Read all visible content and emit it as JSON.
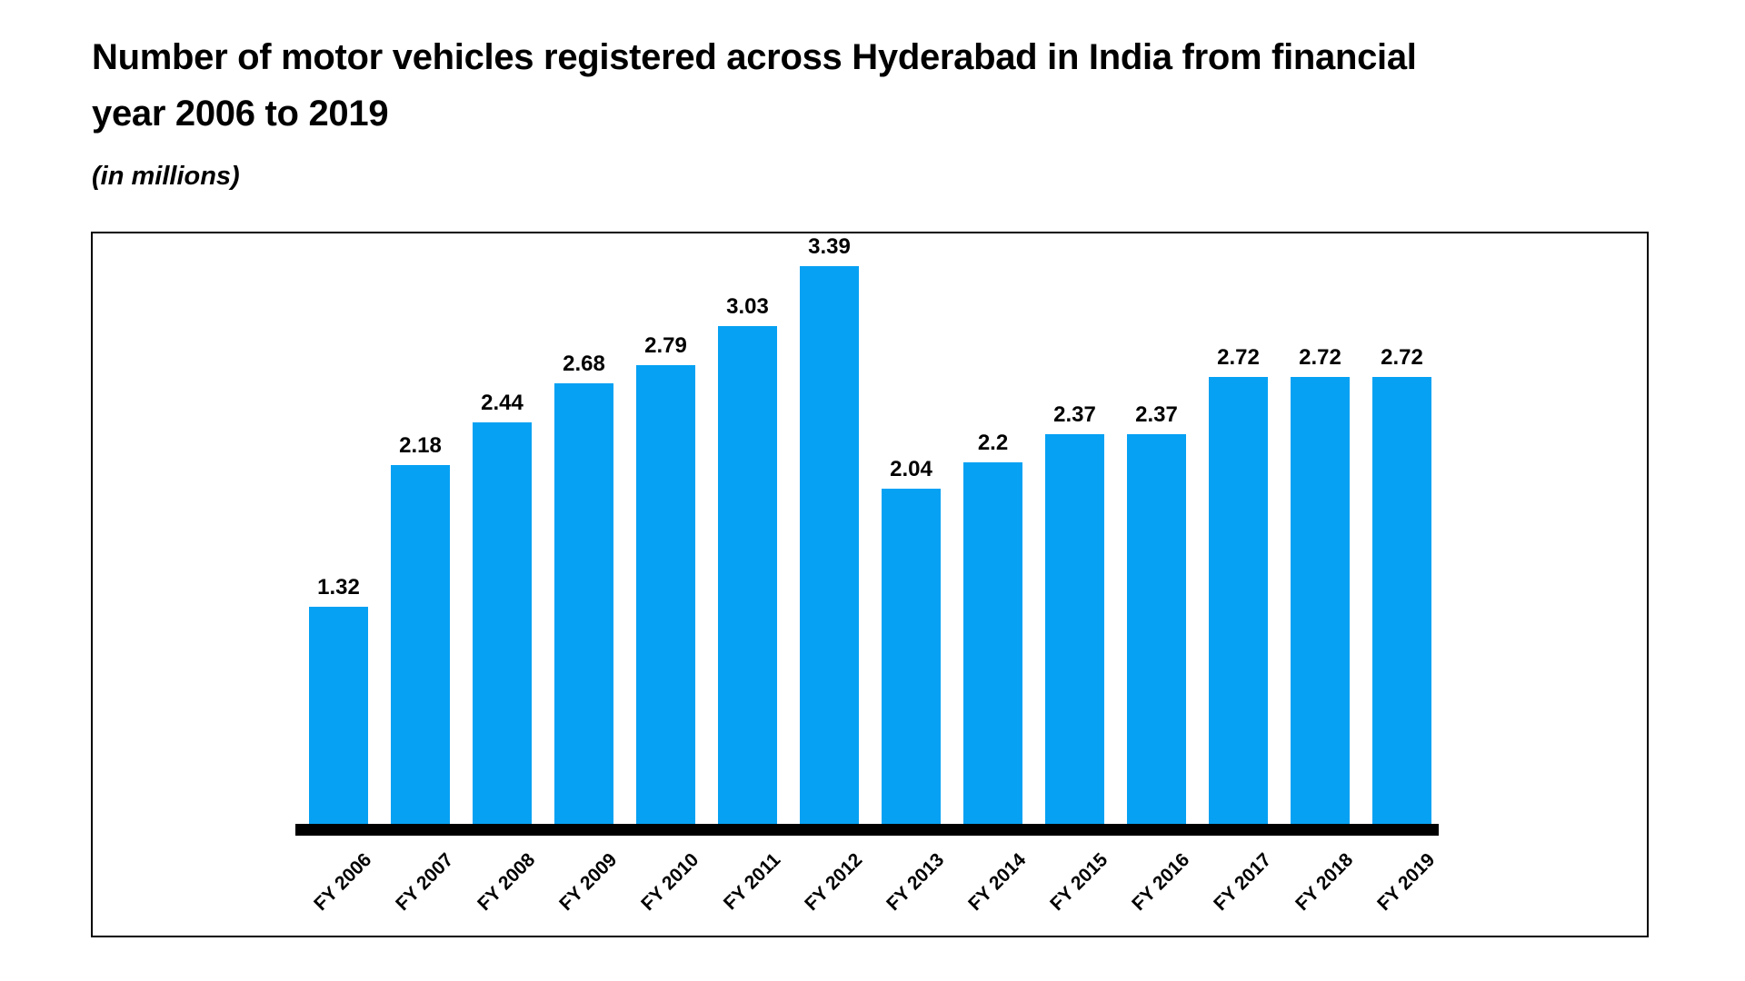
{
  "header": {
    "title_line1": "Number of motor vehicles registered across Hyderabad in India from financial",
    "title_line2": "year 2006 to 2019",
    "subtitle": "(in millions)"
  },
  "chart_data": {
    "type": "bar",
    "title": "Number of motor vehicles registered across Hyderabad in India from financial year 2006 to 2019",
    "subtitle": "(in millions)",
    "unit": "millions",
    "categories": [
      "FY 2006",
      "FY 2007",
      "FY 2008",
      "FY 2009",
      "FY 2010",
      "FY 2011",
      "FY 2012",
      "FY 2013",
      "FY 2014",
      "FY 2015",
      "FY 2016",
      "FY 2017",
      "FY 2018",
      "FY 2019"
    ],
    "values": [
      1.32,
      2.18,
      2.44,
      2.68,
      2.79,
      3.03,
      3.39,
      2.04,
      2.2,
      2.37,
      2.37,
      2.72,
      2.72,
      2.72
    ],
    "value_labels_shown": true,
    "bar_color": "#06a1f3",
    "axis_line_color": "#000000",
    "text_color": "#000000",
    "background_color": "#ffffff",
    "xlabel": "",
    "ylabel": "",
    "ylim": [
      0,
      3.6
    ],
    "gridlines": false,
    "legend": false,
    "tick_label_rotation_deg": -45
  }
}
